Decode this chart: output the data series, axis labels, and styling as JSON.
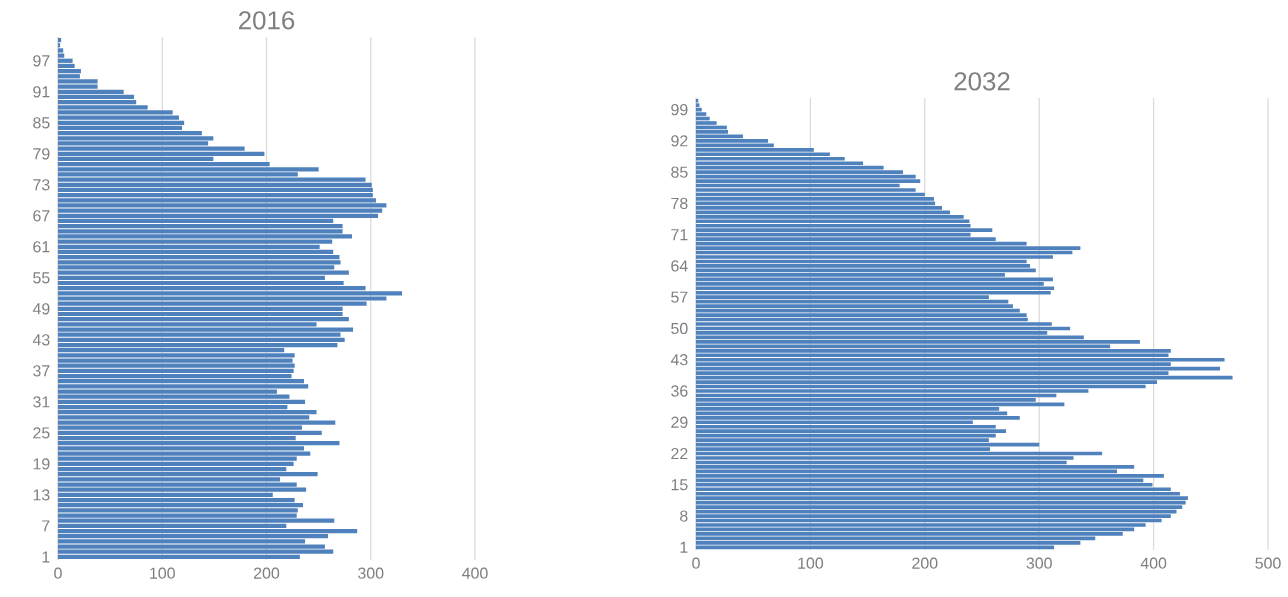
{
  "chart_data": [
    {
      "type": "bar",
      "orientation": "horizontal",
      "title": "2016",
      "color": "#4f81bd",
      "grid": "x",
      "xlim": [
        0,
        400
      ],
      "xticks": [
        0,
        100,
        200,
        300,
        400
      ],
      "categories": [
        null,
        null,
        null,
        null,
        "97",
        null,
        null,
        null,
        null,
        null,
        "91",
        null,
        null,
        null,
        null,
        null,
        "85",
        null,
        null,
        null,
        null,
        null,
        "79",
        null,
        null,
        null,
        null,
        null,
        "73",
        null,
        null,
        null,
        null,
        null,
        "67",
        null,
        null,
        null,
        null,
        null,
        "61",
        null,
        null,
        null,
        null,
        null,
        "55",
        null,
        null,
        null,
        null,
        null,
        "49",
        null,
        null,
        null,
        null,
        null,
        "43",
        null,
        null,
        null,
        null,
        null,
        "37",
        null,
        null,
        null,
        null,
        null,
        "31",
        null,
        null,
        null,
        null,
        null,
        "25",
        null,
        null,
        null,
        null,
        null,
        "19",
        null,
        null,
        null,
        null,
        null,
        "13",
        null,
        null,
        null,
        null,
        null,
        "7",
        null,
        null,
        null,
        null,
        null,
        "1"
      ],
      "values": [
        3,
        2,
        5,
        6,
        14,
        16,
        22,
        21,
        38,
        38,
        63,
        73,
        75,
        86,
        110,
        116,
        121,
        119,
        138,
        149,
        144,
        179,
        198,
        149,
        203,
        250,
        230,
        295,
        301,
        302,
        302,
        305,
        315,
        311,
        307,
        264,
        273,
        273,
        282,
        263,
        251,
        264,
        270,
        271,
        265,
        279,
        256,
        274,
        295,
        330,
        315,
        296,
        273,
        273,
        279,
        248,
        283,
        271,
        275,
        268,
        217,
        227,
        225,
        227,
        226,
        224,
        236,
        240,
        210,
        222,
        237,
        220,
        248,
        241,
        266,
        234,
        253,
        228,
        270,
        236,
        242,
        229,
        226,
        219,
        249,
        213,
        229,
        238,
        206,
        227,
        235,
        230,
        229,
        265,
        219,
        287,
        259,
        237,
        256,
        264,
        232
      ]
    },
    {
      "type": "bar",
      "orientation": "horizontal",
      "title": "2032",
      "color": "#4f81bd",
      "grid": "x",
      "xlim": [
        0,
        500
      ],
      "xticks": [
        0,
        100,
        200,
        300,
        400,
        500
      ],
      "categories": [
        null,
        null,
        "99",
        null,
        null,
        null,
        null,
        null,
        null,
        "92",
        null,
        null,
        null,
        null,
        null,
        null,
        "85",
        null,
        null,
        null,
        null,
        null,
        null,
        "78",
        null,
        null,
        null,
        null,
        null,
        null,
        "71",
        null,
        null,
        null,
        null,
        null,
        null,
        "64",
        null,
        null,
        null,
        null,
        null,
        null,
        "57",
        null,
        null,
        null,
        null,
        null,
        null,
        "50",
        null,
        null,
        null,
        null,
        null,
        null,
        "43",
        null,
        null,
        null,
        null,
        null,
        null,
        "36",
        null,
        null,
        null,
        null,
        null,
        null,
        "29",
        null,
        null,
        null,
        null,
        null,
        null,
        "22",
        null,
        null,
        null,
        null,
        null,
        null,
        "15",
        null,
        null,
        null,
        null,
        null,
        null,
        "8",
        null,
        null,
        null,
        null,
        null,
        null,
        "1"
      ],
      "values": [
        2,
        3,
        5,
        9,
        12,
        18,
        27,
        28,
        41,
        63,
        68,
        103,
        117,
        130,
        146,
        164,
        181,
        192,
        196,
        178,
        192,
        200,
        208,
        209,
        215,
        222,
        234,
        239,
        240,
        259,
        240,
        262,
        289,
        336,
        329,
        312,
        289,
        292,
        297,
        270,
        312,
        304,
        313,
        310,
        256,
        273,
        277,
        283,
        289,
        290,
        311,
        327,
        307,
        339,
        388,
        362,
        415,
        413,
        462,
        415,
        458,
        413,
        469,
        403,
        393,
        343,
        315,
        297,
        322,
        265,
        272,
        283,
        242,
        262,
        271,
        262,
        256,
        300,
        257,
        355,
        330,
        324,
        383,
        368,
        409,
        391,
        399,
        415,
        423,
        430,
        428,
        425,
        420,
        415,
        407,
        393,
        383,
        373,
        349,
        336,
        313
      ]
    }
  ]
}
